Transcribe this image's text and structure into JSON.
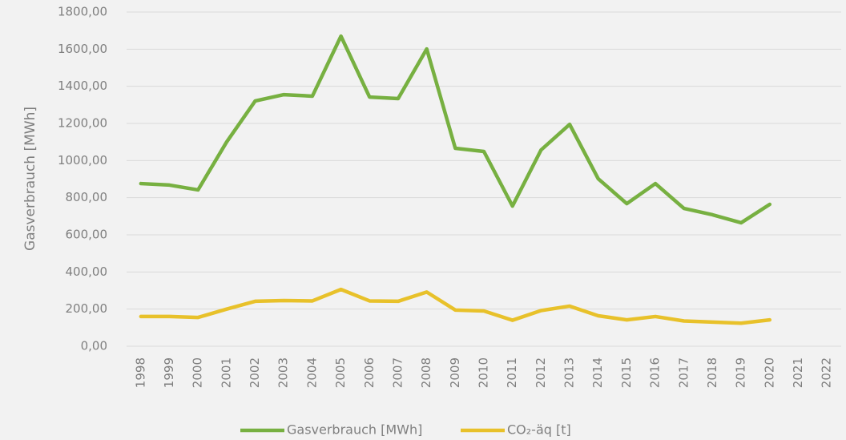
{
  "chart_data": {
    "type": "line",
    "y_axis_label": "Gasverbrauch [MWh]",
    "categories": [
      "1998",
      "1999",
      "2000",
      "2001",
      "2002",
      "2003",
      "2004",
      "2005",
      "2006",
      "2007",
      "2008",
      "2009",
      "2010",
      "2011",
      "2012",
      "2013",
      "2014",
      "2015",
      "2016",
      "2017",
      "2018",
      "2019",
      "2020",
      "2021",
      "2022"
    ],
    "series": [
      {
        "name": "Gasverbrauch [MWh]",
        "color": "#77b041",
        "values": [
          876,
          868,
          842,
          1100,
          1321,
          1355,
          1347,
          1670,
          1342,
          1334,
          1601,
          1066,
          1049,
          755,
          1057,
          1195,
          902,
          768,
          876,
          742,
          708,
          665,
          764,
          null,
          null
        ]
      },
      {
        "name": "CO₂-äq [t]",
        "color": "#e8c12a",
        "values": [
          160,
          160,
          155,
          200,
          242,
          246,
          244,
          306,
          244,
          242,
          292,
          195,
          190,
          140,
          192,
          216,
          164,
          142,
          160,
          136,
          130,
          124,
          142,
          null,
          null
        ]
      }
    ],
    "ylim": [
      0,
      1800
    ],
    "yticks": [
      {
        "value": 0,
        "label": "0,00"
      },
      {
        "value": 200,
        "label": "200,00"
      },
      {
        "value": 400,
        "label": "400,00"
      },
      {
        "value": 600,
        "label": "600,00"
      },
      {
        "value": 800,
        "label": "800,00"
      },
      {
        "value": 1000,
        "label": "1000,00"
      },
      {
        "value": 1200,
        "label": "1200,00"
      },
      {
        "value": 1400,
        "label": "1400,00"
      },
      {
        "value": 1600,
        "label": "1600,00"
      },
      {
        "value": 1800,
        "label": "1800,00"
      }
    ],
    "grid": true,
    "legend": "bottom"
  }
}
